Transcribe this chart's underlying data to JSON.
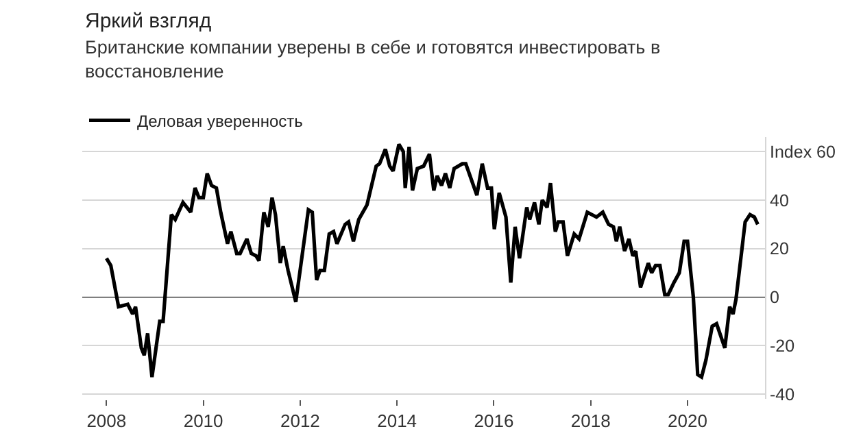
{
  "chart_data": {
    "type": "line",
    "title": "Яркий взгляд",
    "subtitle": "Британские компании уверены в себе и готовятся инвестировать в восстановление",
    "legend": "top left",
    "grid": "y",
    "marker": "none",
    "line_style": "solid",
    "xlim": [
      2007.5,
      2021.6
    ],
    "xticks": [
      2008,
      2010,
      2012,
      2014,
      2016,
      2018,
      2020
    ],
    "ylim": [
      -42,
      66
    ],
    "yticks": [
      -40,
      -20,
      0,
      20,
      40,
      {
        "value": 60,
        "label": "Index 60"
      }
    ],
    "ref_lines": [
      {
        "axis": "y",
        "value": 0,
        "color": "#000000"
      }
    ],
    "series": [
      {
        "name": "Деловая уверенность",
        "color": "#000000",
        "x": [
          2008.0,
          2008.09,
          2008.25,
          2008.44,
          2008.54,
          2008.6,
          2008.72,
          2008.78,
          2008.85,
          2008.94,
          2009.1,
          2009.17,
          2009.34,
          2009.42,
          2009.58,
          2009.74,
          2009.83,
          2009.91,
          2010.0,
          2010.08,
          2010.17,
          2010.27,
          2010.36,
          2010.5,
          2010.57,
          2010.69,
          2010.76,
          2010.9,
          2010.99,
          2011.09,
          2011.15,
          2011.25,
          2011.34,
          2011.42,
          2011.49,
          2011.59,
          2011.65,
          2011.75,
          2011.91,
          2012.17,
          2012.25,
          2012.34,
          2012.41,
          2012.5,
          2012.6,
          2012.69,
          2012.76,
          2012.93,
          2013.0,
          2013.1,
          2013.21,
          2013.38,
          2013.57,
          2013.64,
          2013.76,
          2013.85,
          2013.92,
          2014.04,
          2014.13,
          2014.17,
          2014.25,
          2014.32,
          2014.42,
          2014.55,
          2014.67,
          2014.76,
          2014.83,
          2014.92,
          2015.0,
          2015.09,
          2015.18,
          2015.35,
          2015.42,
          2015.65,
          2015.76,
          2015.87,
          2015.95,
          2016.01,
          2016.11,
          2016.25,
          2016.35,
          2016.44,
          2016.53,
          2016.68,
          2016.74,
          2016.84,
          2016.93,
          2017.0,
          2017.1,
          2017.17,
          2017.27,
          2017.33,
          2017.43,
          2017.52,
          2017.66,
          2017.76,
          2017.93,
          2018.12,
          2018.25,
          2018.37,
          2018.47,
          2018.53,
          2018.6,
          2018.7,
          2018.79,
          2018.87,
          2018.93,
          2019.03,
          2019.19,
          2019.26,
          2019.34,
          2019.43,
          2019.53,
          2019.6,
          2019.72,
          2019.83,
          2019.93,
          2020.0,
          2020.12,
          2020.21,
          2020.29,
          2020.38,
          2020.51,
          2020.6,
          2020.77,
          2020.87,
          2020.94,
          2021.0,
          2021.19,
          2021.29,
          2021.38,
          2021.45
        ],
        "values": [
          16,
          13,
          -4,
          -3,
          -7,
          -4,
          -21,
          -24,
          -15,
          -33,
          -10,
          -10,
          34,
          32,
          39,
          35,
          45,
          41,
          41,
          51,
          46,
          45,
          35,
          22,
          27,
          18,
          18,
          24,
          18,
          17,
          15,
          35,
          29,
          41,
          34,
          14,
          21,
          11,
          -2,
          36,
          35,
          7,
          11,
          11,
          26,
          27,
          22,
          30,
          31,
          23,
          32,
          38,
          54,
          55,
          61,
          54,
          52,
          63,
          60,
          45,
          62,
          44,
          53,
          54,
          59,
          44,
          50,
          46,
          51,
          45,
          53,
          55,
          55,
          42,
          55,
          45,
          45,
          28,
          43,
          33,
          6,
          29,
          16,
          37,
          32,
          39,
          30,
          40,
          37,
          47,
          27,
          31,
          31,
          17,
          26,
          24,
          35,
          33,
          35,
          30,
          29,
          23,
          29,
          19,
          24,
          17,
          19,
          4,
          14,
          10,
          13,
          13,
          1,
          1,
          6,
          10,
          23,
          23,
          0,
          -32,
          -33,
          -26,
          -12,
          -11,
          -21,
          -4,
          -7,
          -1,
          31,
          34,
          33,
          30
        ]
      }
    ]
  }
}
